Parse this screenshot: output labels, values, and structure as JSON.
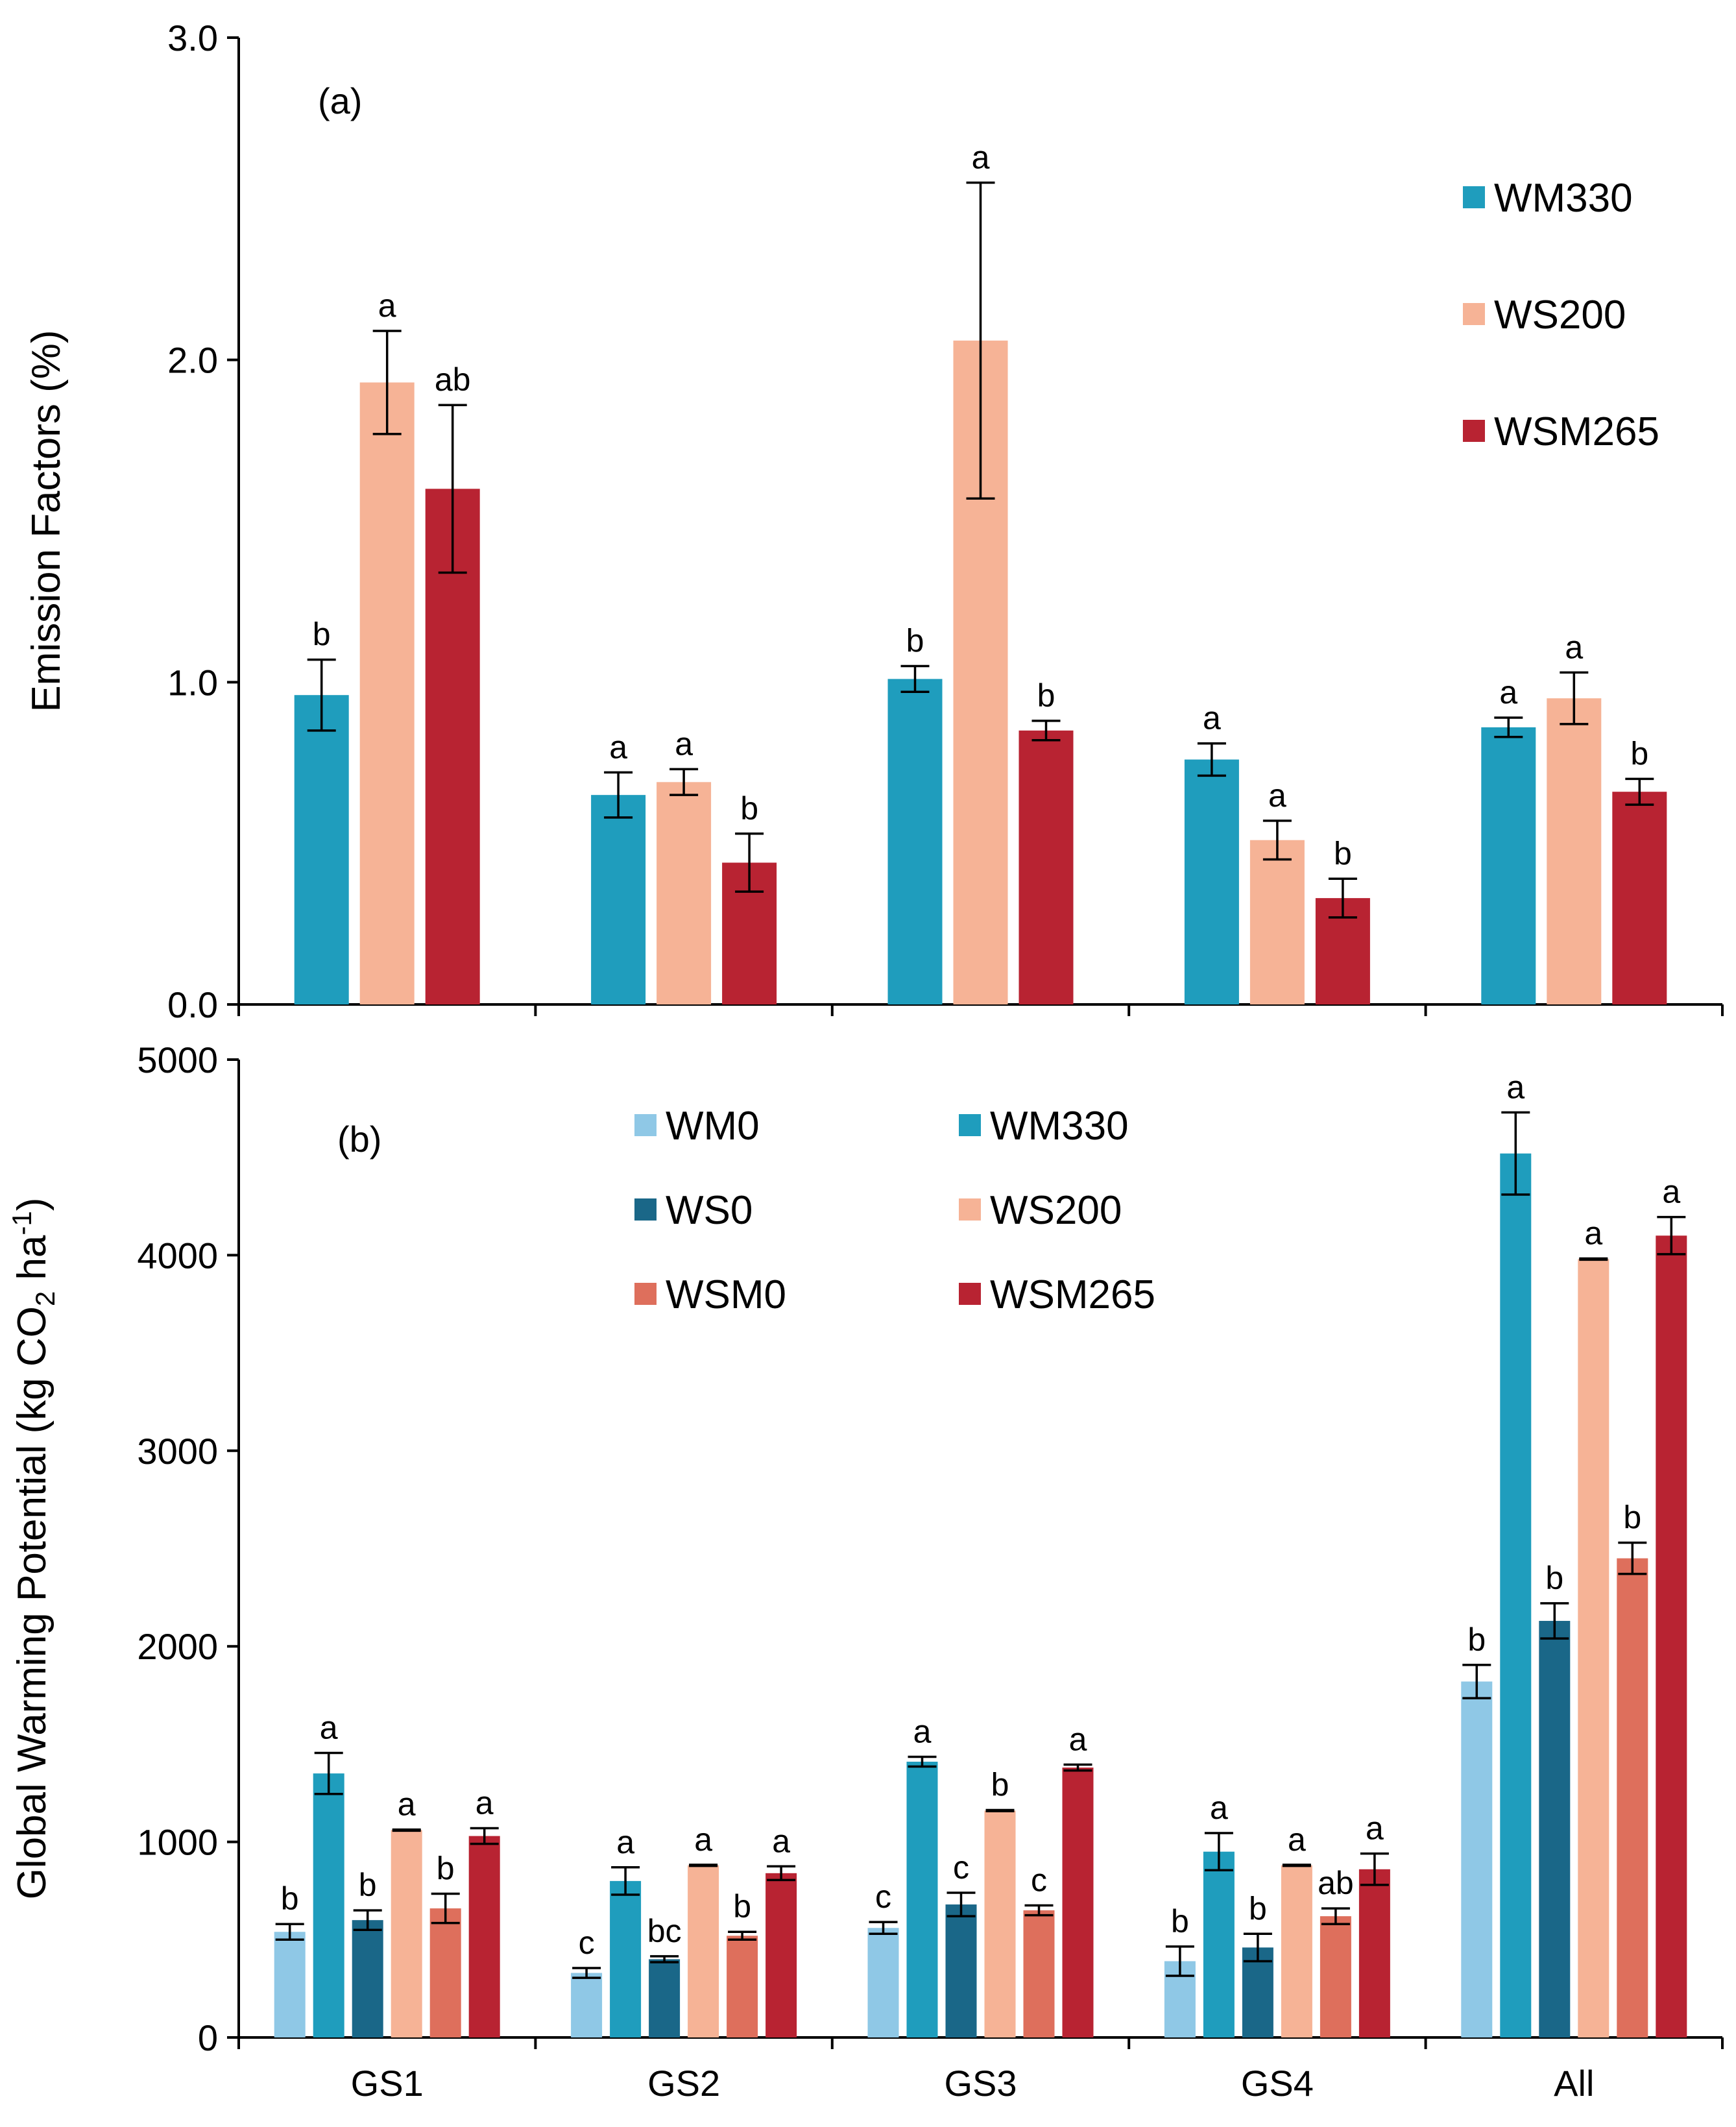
{
  "chart_data": [
    {
      "panel": "(a)",
      "type": "bar",
      "ylabel": "Emission Factors (%)",
      "ylim": [
        0,
        3.0
      ],
      "yticks": [
        "0.0",
        "1.0",
        "2.0",
        "3.0"
      ],
      "ytick_values": [
        0,
        1.0,
        2.0,
        3.0
      ],
      "categories": [
        "GS1",
        "GS2",
        "GS3",
        "GS4",
        "All"
      ],
      "legend_position": "top-right",
      "series": [
        {
          "name": "WM330",
          "color": "#1f9dbd",
          "values": [
            0.96,
            0.65,
            1.01,
            0.76,
            0.86
          ],
          "errors": [
            0.11,
            0.07,
            0.04,
            0.05,
            0.03
          ],
          "letters": [
            "b",
            "a",
            "b",
            "a",
            "a"
          ]
        },
        {
          "name": "WS200",
          "color": "#f6b396",
          "values": [
            1.93,
            0.69,
            2.06,
            0.51,
            0.95
          ],
          "errors": [
            0.16,
            0.04,
            0.49,
            0.06,
            0.08
          ],
          "letters": [
            "a",
            "a",
            "a",
            "a",
            "a"
          ]
        },
        {
          "name": "WSM265",
          "color": "#b82332",
          "values": [
            1.6,
            0.44,
            0.85,
            0.33,
            0.66
          ],
          "errors": [
            0.26,
            0.09,
            0.03,
            0.06,
            0.04
          ],
          "letters": [
            "ab",
            "b",
            "b",
            "b",
            "b"
          ]
        }
      ]
    },
    {
      "panel": "(b)",
      "type": "bar",
      "ylabel_main": "Global Warming Potential (kg CO",
      "ylabel_sub": "2",
      "ylabel_mid": " ha",
      "ylabel_sup": "-1",
      "ylabel_end": ")",
      "ylim": [
        0,
        5000
      ],
      "yticks": [
        "0",
        "1000",
        "2000",
        "3000",
        "4000",
        "5000"
      ],
      "ytick_values": [
        0,
        1000,
        2000,
        3000,
        4000,
        5000
      ],
      "categories": [
        "GS1",
        "GS2",
        "GS3",
        "GS4",
        "All"
      ],
      "legend_position": "top-center",
      "series": [
        {
          "name": "WM0",
          "color": "#8fc8e6",
          "values": [
            540,
            330,
            560,
            390,
            1820
          ],
          "errors": [
            40,
            25,
            30,
            75,
            85
          ],
          "letters": [
            "b",
            "c",
            "c",
            "b",
            "b"
          ]
        },
        {
          "name": "WM330",
          "color": "#1f9dbd",
          "values": [
            1350,
            800,
            1410,
            950,
            4520
          ],
          "errors": [
            105,
            70,
            25,
            95,
            210
          ],
          "letters": [
            "a",
            "a",
            "a",
            "a",
            "a"
          ]
        },
        {
          "name": "WS0",
          "color": "#1a6788",
          "values": [
            600,
            400,
            680,
            460,
            2130
          ],
          "errors": [
            50,
            15,
            60,
            70,
            90
          ],
          "letters": [
            "b",
            "bc",
            "c",
            "b",
            "b"
          ]
        },
        {
          "name": "WS200",
          "color": "#f6b396",
          "values": [
            1060,
            880,
            1160,
            880,
            3980
          ],
          "errors": [
            3,
            3,
            3,
            3,
            3
          ],
          "letters": [
            "a",
            "a",
            "b",
            "a",
            "a"
          ]
        },
        {
          "name": "WSM0",
          "color": "#de6f5c",
          "values": [
            660,
            520,
            650,
            620,
            2450
          ],
          "errors": [
            75,
            20,
            25,
            40,
            80
          ],
          "letters": [
            "b",
            "b",
            "c",
            "ab",
            "b"
          ]
        },
        {
          "name": "WSM265",
          "color": "#b82332",
          "values": [
            1030,
            840,
            1380,
            860,
            4100
          ],
          "errors": [
            40,
            35,
            15,
            80,
            95
          ],
          "letters": [
            "a",
            "a",
            "a",
            "a",
            "a"
          ]
        }
      ]
    }
  ]
}
